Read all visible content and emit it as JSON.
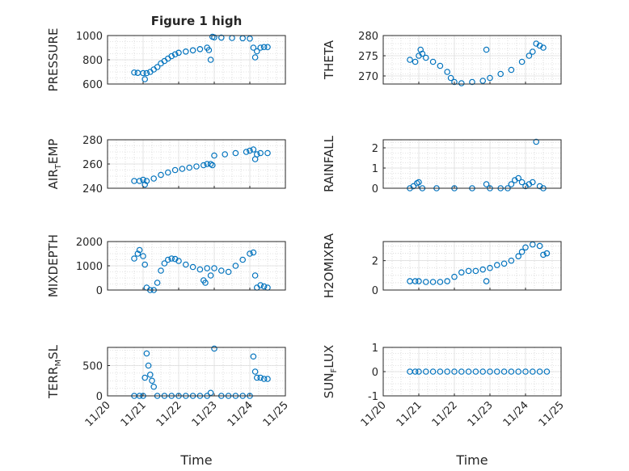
{
  "figure": {
    "title": "Figure 1 high"
  },
  "colors": {
    "marker": "#0072BD",
    "axis": "#262626",
    "grid": "#dcdcdc"
  },
  "x_tick_labels": [
    "11/20",
    "11/21",
    "11/22",
    "11/23",
    "11/24",
    "11/25"
  ],
  "chart_data": [
    {
      "type": "scatter",
      "title": "Figure 1 high",
      "ylabel": "PRESSURE",
      "xlabel": "",
      "xticks": [
        "11/20",
        "11/21",
        "11/22",
        "11/23",
        "11/24",
        "11/25"
      ],
      "ylim": [
        600,
        1000
      ],
      "yticks": [
        600,
        800,
        1000
      ],
      "grid": true,
      "series": [
        {
          "x": [
            20.75,
            20.85,
            21.0,
            21.05,
            21.1,
            21.2,
            21.3,
            21.4,
            21.5,
            21.6,
            21.7,
            21.8,
            21.9,
            22.0,
            22.2,
            22.4,
            22.6,
            22.8,
            22.85,
            22.9,
            22.95,
            23.0,
            23.2,
            23.5,
            23.8,
            24.0,
            24.1,
            24.15,
            24.2,
            24.3,
            24.4,
            24.5
          ],
          "y": [
            695,
            692,
            690,
            640,
            690,
            700,
            720,
            740,
            770,
            790,
            810,
            830,
            845,
            858,
            868,
            878,
            888,
            900,
            880,
            800,
            990,
            985,
            983,
            980,
            978,
            975,
            900,
            820,
            870,
            900,
            905,
            905
          ]
        }
      ]
    },
    {
      "type": "scatter",
      "ylabel": "THETA",
      "xlabel": "",
      "xticks": [
        "11/20",
        "11/21",
        "11/22",
        "11/23",
        "11/24",
        "11/25"
      ],
      "ylim": [
        268,
        280
      ],
      "yticks": [
        270,
        275,
        280
      ],
      "grid": true,
      "series": [
        {
          "x": [
            20.75,
            20.9,
            21.0,
            21.05,
            21.1,
            21.2,
            21.4,
            21.6,
            21.8,
            21.9,
            22.0,
            22.2,
            22.5,
            22.8,
            22.9,
            23.0,
            23.3,
            23.6,
            23.9,
            24.1,
            24.2,
            24.3,
            24.4,
            24.5
          ],
          "y": [
            274,
            273.5,
            275,
            276.5,
            275.5,
            274.5,
            273.5,
            272.5,
            271,
            269.5,
            268.5,
            268.2,
            268.5,
            268.8,
            276.5,
            269.5,
            270.5,
            271.5,
            273.5,
            275,
            276,
            278,
            277.5,
            277
          ]
        }
      ]
    },
    {
      "type": "scatter",
      "ylabel": "AIR_TEMP",
      "xlabel": "",
      "xticks": [
        "11/20",
        "11/21",
        "11/22",
        "11/23",
        "11/24",
        "11/25"
      ],
      "ylim": [
        240,
        280
      ],
      "yticks": [
        240,
        260,
        280
      ],
      "grid": true,
      "series": [
        {
          "x": [
            20.75,
            20.9,
            21.0,
            21.05,
            21.1,
            21.3,
            21.5,
            21.7,
            21.9,
            22.1,
            22.3,
            22.5,
            22.7,
            22.8,
            22.9,
            22.95,
            23.0,
            23.3,
            23.6,
            23.9,
            24.0,
            24.1,
            24.15,
            24.2,
            24.3,
            24.5
          ],
          "y": [
            246,
            246,
            247,
            243,
            246,
            248,
            251,
            253,
            255,
            256,
            257,
            258,
            259,
            260,
            260,
            259,
            267,
            268,
            269,
            270,
            271,
            272,
            264,
            268,
            269,
            269
          ]
        }
      ]
    },
    {
      "type": "scatter",
      "ylabel": "RAINFALL",
      "xlabel": "",
      "xticks": [
        "11/20",
        "11/21",
        "11/22",
        "11/23",
        "11/24",
        "11/25"
      ],
      "ylim": [
        0,
        2.4
      ],
      "yticks": [
        0,
        1,
        2
      ],
      "grid": true,
      "series": [
        {
          "x": [
            20.75,
            20.85,
            20.95,
            21.0,
            21.1,
            21.5,
            22.0,
            22.5,
            22.9,
            23.0,
            23.3,
            23.5,
            23.6,
            23.7,
            23.8,
            23.9,
            24.0,
            24.1,
            24.2,
            24.3,
            24.4,
            24.5
          ],
          "y": [
            0,
            0.1,
            0.25,
            0.3,
            0,
            0,
            0,
            0,
            0.2,
            0,
            0,
            0,
            0.2,
            0.4,
            0.5,
            0.3,
            0.1,
            0.2,
            0.3,
            2.3,
            0.1,
            0
          ]
        }
      ]
    },
    {
      "type": "scatter",
      "ylabel": "MIXDEPTH",
      "xlabel": "",
      "xticks": [
        "11/20",
        "11/21",
        "11/22",
        "11/23",
        "11/24",
        "11/25"
      ],
      "ylim": [
        0,
        2000
      ],
      "yticks": [
        0,
        1000,
        2000
      ],
      "grid": true,
      "series": [
        {
          "x": [
            20.75,
            20.85,
            20.9,
            21.0,
            21.05,
            21.1,
            21.2,
            21.3,
            21.4,
            21.5,
            21.6,
            21.7,
            21.8,
            21.9,
            22.0,
            22.2,
            22.4,
            22.6,
            22.7,
            22.75,
            22.8,
            22.9,
            23.0,
            23.2,
            23.4,
            23.6,
            23.8,
            24.0,
            24.1,
            24.15,
            24.2,
            24.3,
            24.4,
            24.5
          ],
          "y": [
            1300,
            1500,
            1650,
            1400,
            1050,
            100,
            0,
            0,
            300,
            800,
            1100,
            1250,
            1300,
            1280,
            1200,
            1050,
            950,
            850,
            400,
            300,
            900,
            600,
            900,
            800,
            750,
            1000,
            1250,
            1500,
            1550,
            600,
            100,
            200,
            150,
            100
          ]
        }
      ]
    },
    {
      "type": "scatter",
      "ylabel": "H2OMIXRA",
      "xlabel": "",
      "xticks": [
        "11/20",
        "11/21",
        "11/22",
        "11/23",
        "11/24",
        "11/25"
      ],
      "ylim": [
        0,
        3.3
      ],
      "yticks": [
        0,
        2
      ],
      "grid": true,
      "series": [
        {
          "x": [
            20.75,
            20.9,
            21.0,
            21.2,
            21.4,
            21.6,
            21.8,
            22.0,
            22.2,
            22.4,
            22.6,
            22.8,
            22.9,
            23.0,
            23.2,
            23.4,
            23.6,
            23.8,
            23.9,
            24.0,
            24.2,
            24.4,
            24.5,
            24.6
          ],
          "y": [
            0.6,
            0.6,
            0.6,
            0.55,
            0.55,
            0.55,
            0.6,
            0.9,
            1.2,
            1.3,
            1.3,
            1.4,
            0.6,
            1.5,
            1.7,
            1.8,
            2.0,
            2.3,
            2.6,
            2.9,
            3.1,
            3.0,
            2.4,
            2.5
          ]
        }
      ]
    },
    {
      "type": "scatter",
      "ylabel": "TERR_MSL",
      "xlabel": "Time",
      "xticks": [
        "11/20",
        "11/21",
        "11/22",
        "11/23",
        "11/24",
        "11/25"
      ],
      "ylim": [
        0,
        800
      ],
      "yticks": [
        0,
        500
      ],
      "grid": true,
      "series": [
        {
          "x": [
            20.75,
            20.9,
            21.0,
            21.05,
            21.1,
            21.15,
            21.2,
            21.25,
            21.3,
            21.4,
            21.6,
            21.8,
            22.0,
            22.2,
            22.4,
            22.6,
            22.8,
            22.9,
            23.0,
            23.2,
            23.4,
            23.6,
            23.8,
            24.0,
            24.1,
            24.15,
            24.2,
            24.3,
            24.4,
            24.5
          ],
          "y": [
            0,
            0,
            0,
            300,
            700,
            500,
            350,
            250,
            150,
            0,
            0,
            0,
            0,
            0,
            0,
            0,
            0,
            50,
            780,
            0,
            0,
            0,
            0,
            0,
            650,
            400,
            300,
            300,
            280,
            280
          ]
        }
      ]
    },
    {
      "type": "scatter",
      "ylabel": "SUN_FLUX",
      "xlabel": "Time",
      "xticks": [
        "11/20",
        "11/21",
        "11/22",
        "11/23",
        "11/24",
        "11/25"
      ],
      "ylim": [
        -1,
        1
      ],
      "yticks": [
        -1,
        0,
        1
      ],
      "grid": true,
      "series": [
        {
          "x": [
            20.75,
            20.9,
            21.0,
            21.2,
            21.4,
            21.6,
            21.8,
            22.0,
            22.2,
            22.4,
            22.6,
            22.8,
            23.0,
            23.2,
            23.4,
            23.6,
            23.8,
            24.0,
            24.2,
            24.4,
            24.6
          ],
          "y": [
            0,
            0,
            0,
            0,
            0,
            0,
            0,
            0,
            0,
            0,
            0,
            0,
            0,
            0,
            0,
            0,
            0,
            0,
            0,
            0,
            0
          ]
        }
      ]
    }
  ],
  "ylabels": [
    {
      "main": "PRESSURE",
      "sub": ""
    },
    {
      "main": "THETA",
      "sub": ""
    },
    {
      "main": "AIR",
      "sub": "T",
      "rest": "EMP"
    },
    {
      "main": "RAINFALL",
      "sub": ""
    },
    {
      "main": "MIXDEPTH",
      "sub": ""
    },
    {
      "main": "H2OMIXRA",
      "sub": ""
    },
    {
      "main": "TERR",
      "sub": "M",
      "rest": "SL"
    },
    {
      "main": "SUN",
      "sub": "F",
      "rest": "LUX"
    }
  ]
}
